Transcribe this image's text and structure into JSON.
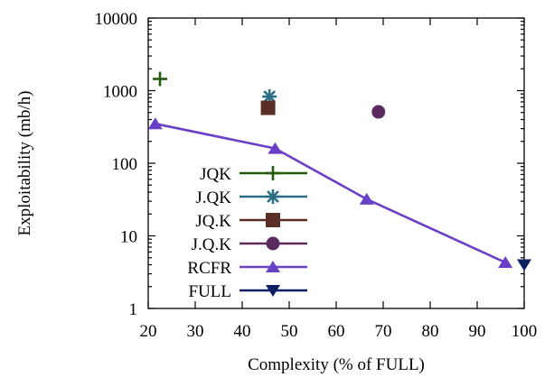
{
  "chart_data": {
    "type": "scatter",
    "xlabel": "Complexity (% of FULL)",
    "ylabel": "Exploitability (mb/h)",
    "xlim": [
      20,
      100
    ],
    "ylim": [
      1,
      10000
    ],
    "yscale": "log",
    "x_ticks": [
      20,
      30,
      40,
      50,
      60,
      70,
      80,
      90,
      100
    ],
    "y_ticks": [
      1,
      10,
      100,
      1000,
      10000
    ],
    "x_tick_labels": [
      "20",
      "30",
      "40",
      "50",
      "60",
      "70",
      "80",
      "90",
      "100"
    ],
    "y_tick_labels": [
      "1",
      "10",
      "100",
      "1000",
      "10000"
    ],
    "grid": false,
    "legend_position": "center-left",
    "series": [
      {
        "name": "JQK",
        "color": "#1f5c0c",
        "marker": "plus",
        "line": false,
        "points": [
          {
            "x": 22.5,
            "y": 1450
          }
        ]
      },
      {
        "name": "J.QK",
        "color": "#2a6f86",
        "marker": "asterisk",
        "line": false,
        "points": [
          {
            "x": 45.8,
            "y": 830
          }
        ]
      },
      {
        "name": "JQ.K",
        "color": "#5a2e24",
        "marker": "square",
        "line": false,
        "points": [
          {
            "x": 45.5,
            "y": 580
          }
        ]
      },
      {
        "name": "J.Q.K",
        "color": "#5b2a5e",
        "marker": "circle",
        "line": false,
        "points": [
          {
            "x": 69,
            "y": 510
          }
        ]
      },
      {
        "name": "RCFR",
        "color": "#6a40c6",
        "marker": "triangle-up",
        "line": true,
        "points": [
          {
            "x": 21.5,
            "y": 350
          },
          {
            "x": 47,
            "y": 160
          },
          {
            "x": 66.5,
            "y": 32
          },
          {
            "x": 96,
            "y": 4.3
          }
        ]
      },
      {
        "name": "FULL",
        "color": "#0d1f63",
        "marker": "triangle-down",
        "line": false,
        "points": [
          {
            "x": 100,
            "y": 4
          }
        ]
      }
    ]
  }
}
